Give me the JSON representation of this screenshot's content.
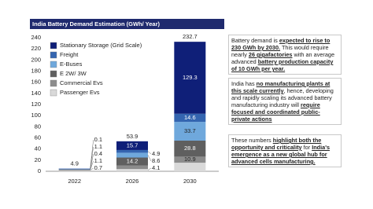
{
  "chart_data": {
    "type": "bar",
    "stacked": true,
    "title": "India Battery Demand Estimation (GWh/ Year)",
    "categories": [
      "2022",
      "2026",
      "2030"
    ],
    "series": [
      {
        "name": "Passenger Evs",
        "color": "#d9d9d9",
        "values": [
          1.5,
          4.1,
          15.4
        ],
        "value_labels": [
          null,
          "4.1",
          null
        ]
      },
      {
        "name": "Commercial Evs",
        "color": "#8c8c8c",
        "values": [
          0.7,
          6.4,
          10.9
        ],
        "value_labels": [
          "0.7",
          null,
          "10.9"
        ]
      },
      {
        "name": "E 2W/ 3W",
        "color": "#5f5f5f",
        "values": [
          1.1,
          14.2,
          28.8
        ],
        "value_labels": [
          "1.1",
          "14.2",
          "28.8"
        ]
      },
      {
        "name": "E-Buses",
        "color": "#6fa8dc",
        "values": [
          0.4,
          8.6,
          33.7
        ],
        "value_labels": [
          "0.4",
          "8.6",
          "33.7"
        ]
      },
      {
        "name": "Freight",
        "color": "#3465b0",
        "values": [
          1.1,
          4.9,
          14.6
        ],
        "value_labels": [
          "1.1",
          "4.9",
          "14.6"
        ]
      },
      {
        "name": "Stationary Storage (Grid Scale)",
        "color": "#0f1f78",
        "values": [
          0.1,
          15.7,
          129.3
        ],
        "value_labels": [
          "0.1",
          "15.7",
          "129.3"
        ]
      }
    ],
    "totals": [
      4.9,
      53.9,
      232.7
    ],
    "ylim": [
      0,
      240
    ],
    "yticks": [
      0,
      20,
      40,
      60,
      80,
      100,
      120,
      140,
      160,
      180,
      200,
      220,
      240
    ],
    "grid": false,
    "legend": "upper left"
  },
  "notes": [
    {
      "segments": [
        {
          "text": "Battery demand is "
        },
        {
          "text": "expected to rise to 230 GWh by 2030.",
          "strong": true
        },
        {
          "text": " This would require nearly "
        },
        {
          "text": "26 gigafactories",
          "strong": true
        },
        {
          "text": " with an average advanced "
        },
        {
          "text": "battery production capacity of 10 GWh per year.",
          "strong": true
        }
      ]
    },
    {
      "segments": [
        {
          "text": "India has "
        },
        {
          "text": "no manufacturing plants at this scale currently",
          "strong": true
        },
        {
          "text": ", hence, developing and rapidly scaling its advanced battery manufacturing industry will "
        },
        {
          "text": "require focused and coordinated public-private actions",
          "strong": true
        }
      ]
    },
    {
      "segments": [
        {
          "text": "These numbers "
        },
        {
          "text": "highlight both the opportunity and criticality",
          "strong": true
        },
        {
          "text": " for "
        },
        {
          "text": "India's emergence as a new global hub for advanced cells manufacturing.",
          "strong": true
        }
      ]
    }
  ]
}
